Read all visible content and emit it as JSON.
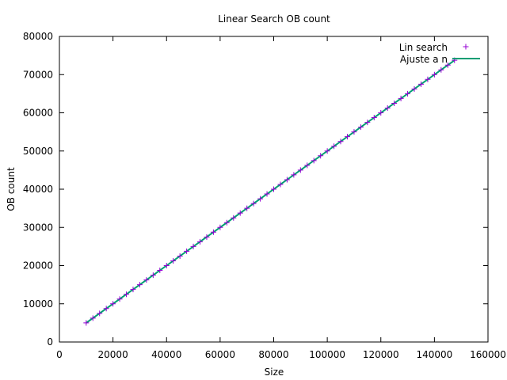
{
  "chart_data": {
    "type": "scatter",
    "title": "Linear Search OB count",
    "xlabel": "Size",
    "ylabel": "OB count",
    "xlim": [
      0,
      160000
    ],
    "ylim": [
      0,
      80000
    ],
    "xticks": [
      0,
      20000,
      40000,
      60000,
      80000,
      100000,
      120000,
      140000,
      160000
    ],
    "yticks": [
      0,
      10000,
      20000,
      30000,
      40000,
      50000,
      60000,
      70000,
      80000
    ],
    "grid": false,
    "legend_position": "top-right",
    "colors": {
      "points": "#9400d3",
      "fit": "#009e73",
      "axes": "#000000"
    },
    "series": [
      {
        "name": "Lin search",
        "kind": "points",
        "marker": "plus",
        "x": [
          10000,
          12500,
          15000,
          17500,
          20000,
          22500,
          25000,
          27500,
          30000,
          32500,
          35000,
          37500,
          40000,
          42500,
          45000,
          47500,
          50000,
          52500,
          55000,
          57500,
          60000,
          62500,
          65000,
          67500,
          70000,
          72500,
          75000,
          77500,
          80000,
          82500,
          85000,
          87500,
          90000,
          92500,
          95000,
          97500,
          100000,
          102500,
          105000,
          107500,
          110000,
          112500,
          115000,
          117500,
          120000,
          122500,
          125000,
          127500,
          130000,
          132500,
          135000,
          137500,
          140000,
          142500,
          145000,
          147500
        ],
        "y": [
          5000,
          6250,
          7500,
          8750,
          10000,
          11250,
          12500,
          13750,
          15000,
          16250,
          17500,
          18750,
          20000,
          21250,
          22500,
          23750,
          25000,
          26250,
          27500,
          28750,
          30000,
          31250,
          32500,
          33750,
          35000,
          36250,
          37500,
          38750,
          40000,
          41250,
          42500,
          43750,
          45000,
          46250,
          47500,
          48750,
          50000,
          51250,
          52500,
          53750,
          55000,
          56250,
          57500,
          58750,
          60000,
          61250,
          62500,
          63750,
          65000,
          66250,
          67500,
          68750,
          70000,
          71250,
          72500,
          73750
        ]
      },
      {
        "name": "Ajuste a n",
        "kind": "line",
        "x": [
          10000,
          147500
        ],
        "y": [
          5000,
          73750
        ]
      }
    ]
  }
}
